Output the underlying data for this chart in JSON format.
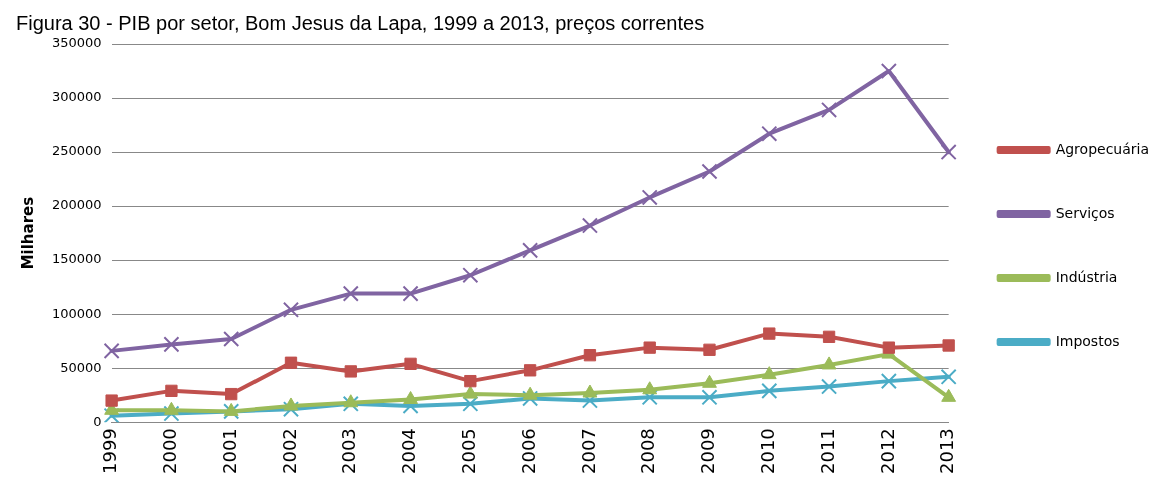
{
  "chart_data": {
    "type": "line",
    "title": "Figura 30 - PIB por setor, Bom Jesus da Lapa, 1999 a 2013, preços correntes",
    "ylabel": "Milhares",
    "categories": [
      "1999",
      "2000",
      "2001",
      "2002",
      "2003",
      "2004",
      "2005",
      "2006",
      "2007",
      "2008",
      "2009",
      "2010",
      "2011",
      "2012",
      "2013"
    ],
    "series": [
      {
        "name": "Agropecuária",
        "color": "#c0504d",
        "marker": "square",
        "values": [
          20000,
          29000,
          26000,
          55000,
          47000,
          54000,
          38000,
          48000,
          62000,
          69000,
          67000,
          82000,
          79000,
          69000,
          71000
        ]
      },
      {
        "name": "Serviços",
        "color": "#8064a2",
        "marker": "cross",
        "values": [
          66000,
          72000,
          77000,
          104000,
          119000,
          119000,
          136000,
          159000,
          182000,
          208000,
          232000,
          267000,
          289000,
          325000,
          250000
        ]
      },
      {
        "name": "Indústria",
        "color": "#9bbb59",
        "marker": "triangle",
        "values": [
          11000,
          11000,
          10000,
          15000,
          18000,
          21000,
          26000,
          25000,
          27000,
          30000,
          36000,
          44000,
          53000,
          63000,
          23000
        ]
      },
      {
        "name": "Impostos",
        "color": "#4bacc6",
        "marker": "cross",
        "values": [
          6000,
          8000,
          10000,
          12000,
          17000,
          15000,
          17000,
          22000,
          20000,
          23000,
          23000,
          29000,
          33000,
          38000,
          42000
        ]
      }
    ],
    "ylim": [
      0,
      350000
    ],
    "yticks": [
      0,
      50000,
      100000,
      150000,
      200000,
      250000,
      300000,
      350000
    ],
    "grid": "y",
    "legend": "right",
    "line_style": "solid"
  }
}
